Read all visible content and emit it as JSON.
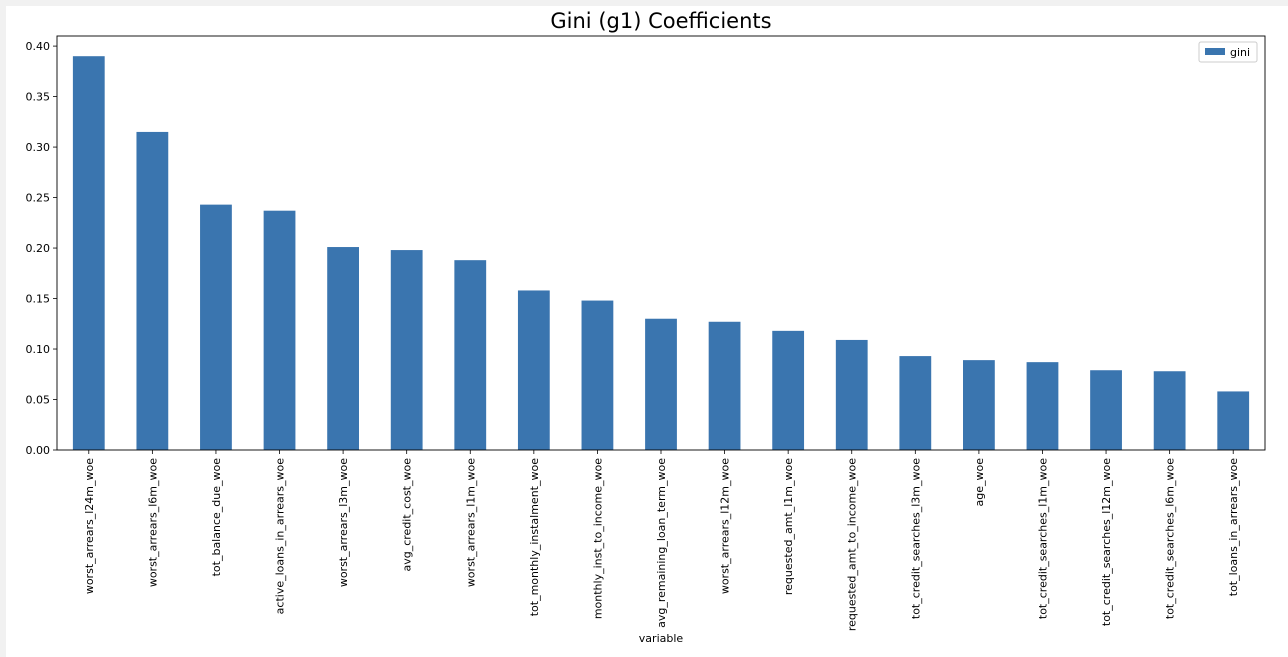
{
  "chart_data": {
    "type": "bar",
    "title": "Gini (g1) Coefficients",
    "xlabel": "variable",
    "ylabel": "",
    "ylim": [
      0,
      0.41
    ],
    "yticks": [
      "0.00",
      "0.05",
      "0.10",
      "0.15",
      "0.20",
      "0.25",
      "0.30",
      "0.35",
      "0.40"
    ],
    "grid": false,
    "legend_position": "top-right",
    "bar_color": "#3a75af",
    "categories": [
      "worst_arrears_l24m_woe",
      "worst_arrears_l6m_woe",
      "tot_balance_due_woe",
      "active_loans_in_arrears_woe",
      "worst_arrears_l3m_woe",
      "avg_credit_cost_woe",
      "worst_arrears_l1m_woe",
      "tot_monthly_instalment_woe",
      "monthly_inst_to_income_woe",
      "avg_remaining_loan_term_woe",
      "worst_arrears_l12m_woe",
      "requested_amt_l1m_woe",
      "requested_amt_to_income_woe",
      "tot_credit_searches_l3m_woe",
      "age_woe",
      "tot_credit_searches_l1m_woe",
      "tot_credit_searches_l12m_woe",
      "tot_credit_searches_l6m_woe",
      "tot_loans_in_arrears_woe"
    ],
    "series": [
      {
        "name": "gini",
        "values": [
          0.39,
          0.315,
          0.243,
          0.237,
          0.201,
          0.198,
          0.188,
          0.158,
          0.148,
          0.13,
          0.127,
          0.118,
          0.109,
          0.093,
          0.089,
          0.087,
          0.079,
          0.078,
          0.058
        ]
      }
    ]
  }
}
